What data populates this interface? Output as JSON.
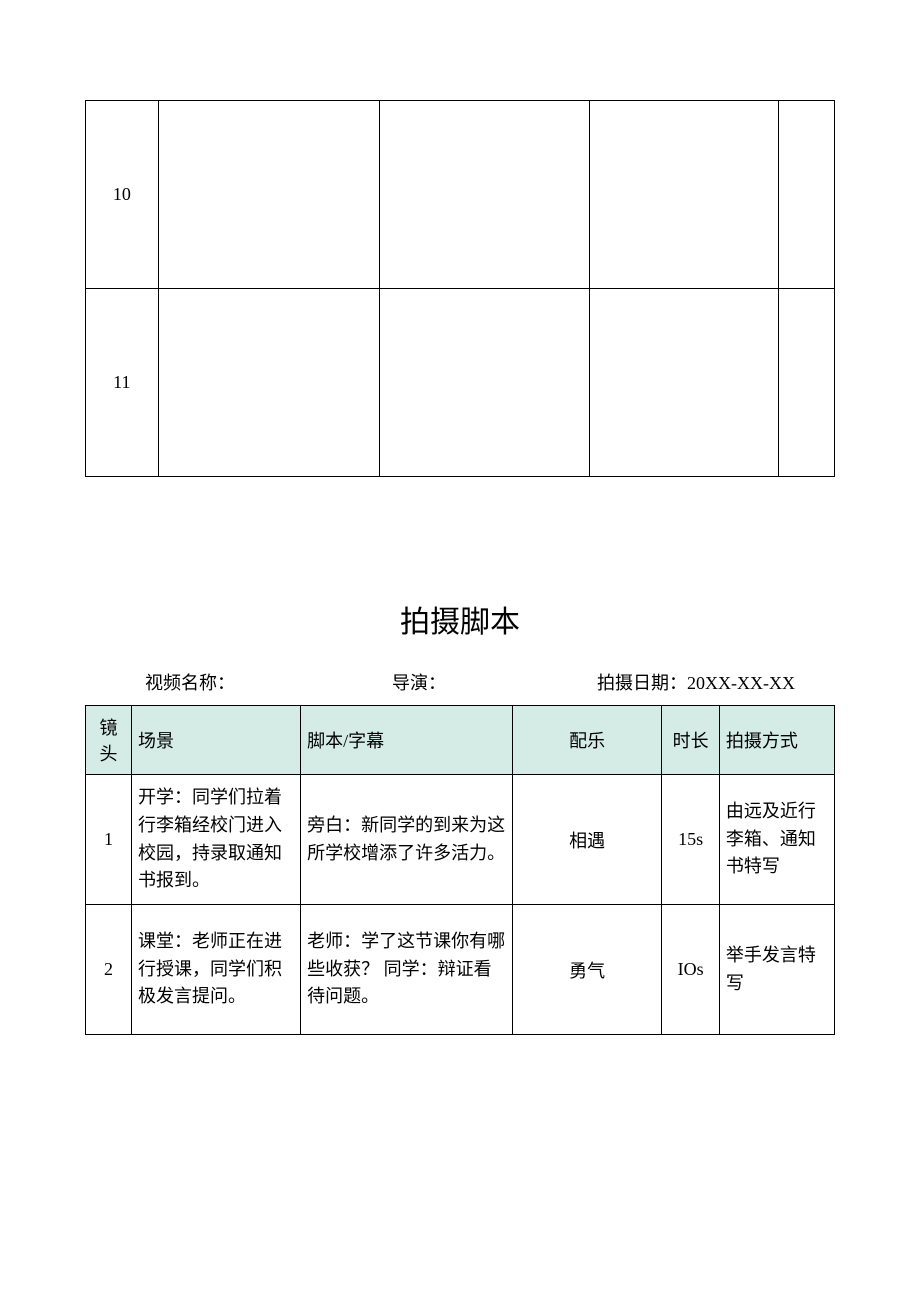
{
  "topTable": {
    "rows": [
      {
        "num": "10",
        "c2": "",
        "c3": "",
        "c4": "",
        "c5": ""
      },
      {
        "num": "11",
        "c2": "",
        "c3": "",
        "c4": "",
        "c5": ""
      }
    ]
  },
  "title": "拍摄脚本",
  "meta": {
    "videoLabel": "视频名称：",
    "directorLabel": "导演：",
    "dateLabel": "拍摄日期：",
    "dateValue": "20XX-XX-XX"
  },
  "scriptTable": {
    "headers": {
      "shot": "镜头",
      "scene": "场景",
      "script": "脚本/字幕",
      "music": "配乐",
      "duration": "时长",
      "method": "拍摄方式"
    },
    "rows": [
      {
        "shot": "1",
        "scene": "开学：同学们拉着行李箱经校门进入校园，持录取通知书报到。",
        "script": "旁白：新同学的到来为这所学校增添了许多活力。",
        "music": "相遇",
        "duration": "15s",
        "method": "由远及近行李箱、通知书特写"
      },
      {
        "shot": "2",
        "scene": "课堂：老师正在进行授课，同学们积极发言提问。",
        "script": "老师：学了这节课你有哪些收获？ 同学：辩证看待问题。",
        "music": "勇气",
        "duration": "IOs",
        "method": "举手发言特写"
      }
    ]
  },
  "colors": {
    "headerBg": "#d4ebe6",
    "border": "#000000",
    "text": "#000000",
    "background": "#ffffff"
  }
}
